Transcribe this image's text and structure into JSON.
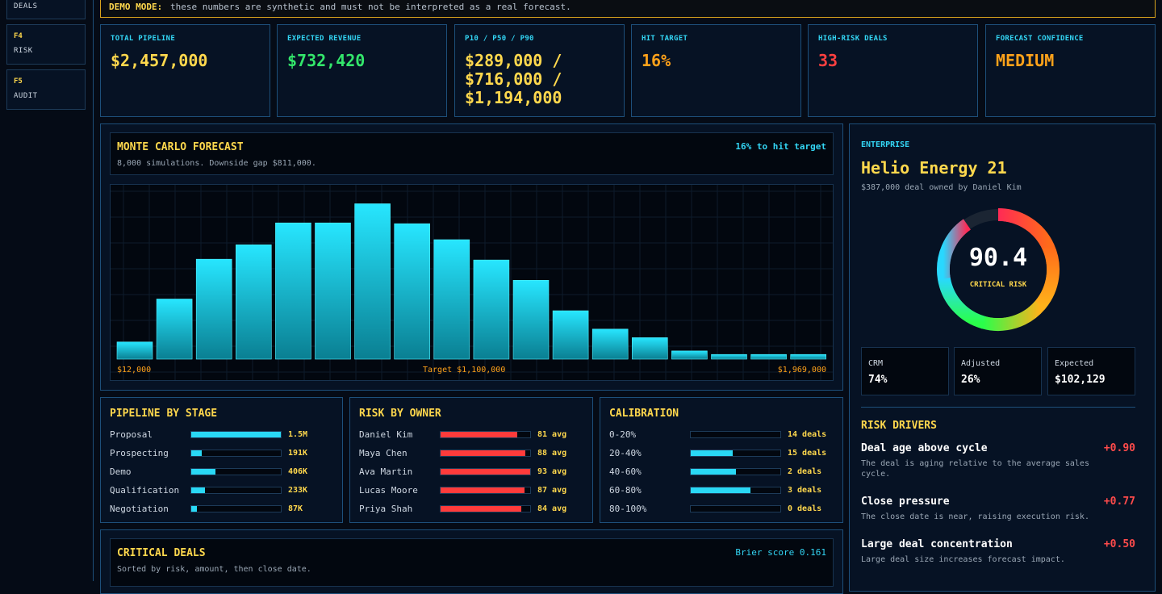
{
  "sidebar": {
    "items": [
      {
        "key": "",
        "label": "DEALS"
      },
      {
        "key": "F4",
        "label": "RISK"
      },
      {
        "key": "F5",
        "label": "AUDIT"
      }
    ]
  },
  "banner": {
    "label": "DEMO MODE:",
    "text": "these numbers are synthetic and must not be interpreted as a real forecast."
  },
  "kpis": [
    {
      "label": "TOTAL PIPELINE",
      "lines": [
        "$2,457,000"
      ],
      "color": "#ffd84d"
    },
    {
      "label": "EXPECTED REVENUE",
      "lines": [
        "$732,420"
      ],
      "color": "#33e66b"
    },
    {
      "label": "P10 / P50 / P90",
      "lines": [
        "$289,000 /",
        "$716,000 /",
        "$1,194,000"
      ],
      "color": "#ffd84d"
    },
    {
      "label": "HIT TARGET",
      "lines": [
        "16%"
      ],
      "color": "#ffa21a"
    },
    {
      "label": "HIGH-RISK DEALS",
      "lines": [
        "33"
      ],
      "color": "#ff4040"
    },
    {
      "label": "FORECAST CONFIDENCE",
      "lines": [
        "MEDIUM"
      ],
      "color": "#ffa21a"
    }
  ],
  "forecast": {
    "title": "MONTE CARLO FORECAST",
    "badge": "16% to hit target",
    "subtitle": "8,000 simulations. Downside gap $811,000."
  },
  "chart_data": {
    "type": "bar",
    "title": "MONTE CARLO FORECAST",
    "xlabel": "",
    "ylabel": "",
    "x_start_label": "$12,000",
    "target_label": "Target $1,100,000",
    "x_end_label": "$1,969,000",
    "values": [
      44,
      154,
      256,
      293,
      349,
      349,
      398,
      347,
      306,
      254,
      202,
      124,
      77,
      55,
      21,
      12,
      12,
      12
    ],
    "ylim": [
      0,
      430
    ],
    "grid": true
  },
  "stage": {
    "title": "PIPELINE BY STAGE",
    "rows": [
      {
        "label": "Proposal",
        "fraction": 1.0,
        "value": "1.5M"
      },
      {
        "label": "Prospecting",
        "fraction": 0.12,
        "value": "191K"
      },
      {
        "label": "Demo",
        "fraction": 0.27,
        "value": "406K"
      },
      {
        "label": "Qualification",
        "fraction": 0.15,
        "value": "233K"
      },
      {
        "label": "Negotiation",
        "fraction": 0.06,
        "value": "87K"
      }
    ]
  },
  "owner": {
    "title": "RISK BY OWNER",
    "rows": [
      {
        "label": "Daniel Kim",
        "fraction": 0.86,
        "value": "81 avg"
      },
      {
        "label": "Maya Chen",
        "fraction": 0.95,
        "value": "88 avg"
      },
      {
        "label": "Ava Martin",
        "fraction": 1.0,
        "value": "93 avg"
      },
      {
        "label": "Lucas Moore",
        "fraction": 0.94,
        "value": "87 avg"
      },
      {
        "label": "Priya Shah",
        "fraction": 0.9,
        "value": "84 avg"
      }
    ]
  },
  "calibration": {
    "title": "CALIBRATION",
    "rows": [
      {
        "label": "0-20%",
        "fraction": 0.0,
        "value": "14 deals"
      },
      {
        "label": "20-40%",
        "fraction": 0.47,
        "value": "15 deals"
      },
      {
        "label": "40-60%",
        "fraction": 0.5,
        "value": "2 deals"
      },
      {
        "label": "60-80%",
        "fraction": 0.67,
        "value": "3 deals"
      },
      {
        "label": "80-100%",
        "fraction": 0.0,
        "value": "0 deals"
      }
    ]
  },
  "critical": {
    "title": "CRITICAL DEALS",
    "badge": "Brier score 0.161",
    "subtitle": "Sorted by risk, amount, then close date."
  },
  "deal": {
    "segment": "ENTERPRISE",
    "name": "Helio Energy 21",
    "summary": "$387,000 deal owned by Daniel Kim",
    "score": "90.4",
    "score_label": "CRITICAL RISK",
    "score_fraction": 0.904,
    "boxes": [
      {
        "label": "CRM",
        "value": "74%"
      },
      {
        "label": "Adjusted",
        "value": "26%"
      },
      {
        "label": "Expected",
        "value": "$102,129"
      }
    ],
    "drivers_title": "RISK DRIVERS",
    "drivers": [
      {
        "title": "Deal age above cycle",
        "value": "+0.90",
        "desc": "The deal is aging relative to the average sales cycle."
      },
      {
        "title": "Close pressure",
        "value": "+0.77",
        "desc": "The close date is near, raising execution risk."
      },
      {
        "title": "Large deal concentration",
        "value": "+0.50",
        "desc": "Large deal size increases forecast impact."
      }
    ]
  }
}
